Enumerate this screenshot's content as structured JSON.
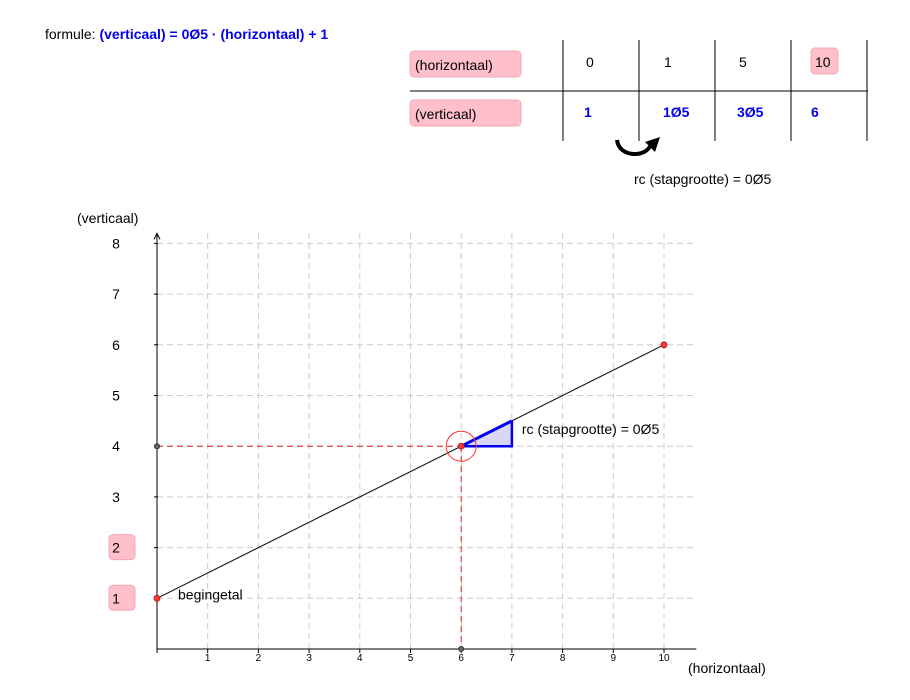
{
  "formula": {
    "prefix": "formule:",
    "expression": "(verticaal) = 0Ø5 · (horizontaal) + 1"
  },
  "table": {
    "row_horizontal_label": "(horizontaal)",
    "row_vertical_label": "(verticaal)",
    "horizontal_values": [
      "0",
      "1",
      "5",
      "10"
    ],
    "vertical_values": [
      "1",
      "1Ø5",
      "3Ø5",
      "6"
    ],
    "step_label": "rc (stapgrootte) = 0Ø5"
  },
  "chart_data": {
    "type": "line",
    "xlabel": "(horizontaal)",
    "ylabel": "(verticaal)",
    "xlim": [
      0,
      10.5
    ],
    "ylim": [
      0,
      8
    ],
    "x_ticks": [
      "1",
      "2",
      "3",
      "4",
      "5",
      "6",
      "7",
      "8",
      "9",
      "10"
    ],
    "y_ticks": [
      "1",
      "2",
      "3",
      "4",
      "5",
      "6",
      "7",
      "8"
    ],
    "grid": true,
    "line": {
      "x": [
        0,
        10
      ],
      "y": [
        1,
        6
      ]
    },
    "points": [
      {
        "x": 0,
        "y": 1
      },
      {
        "x": 6,
        "y": 4
      },
      {
        "x": 10,
        "y": 6
      }
    ],
    "guide_point": {
      "x": 6,
      "y": 4
    },
    "slope_triangle": {
      "x0": 6,
      "y0": 4,
      "dx": 1,
      "dy": 0.5,
      "label": "rc (stapgrootte) = 0Ø5"
    },
    "intercept_label": "begingetal",
    "highlighted_y_ticks": [
      "1",
      "2"
    ],
    "colors": {
      "line": "#000000",
      "point": "#ff3333",
      "guide": "#dd2222",
      "triangle": "#0000ee",
      "triangle_fill": "#d8d8f6",
      "highlight": "#ffc0cb",
      "value_text": "#0000ee"
    }
  }
}
